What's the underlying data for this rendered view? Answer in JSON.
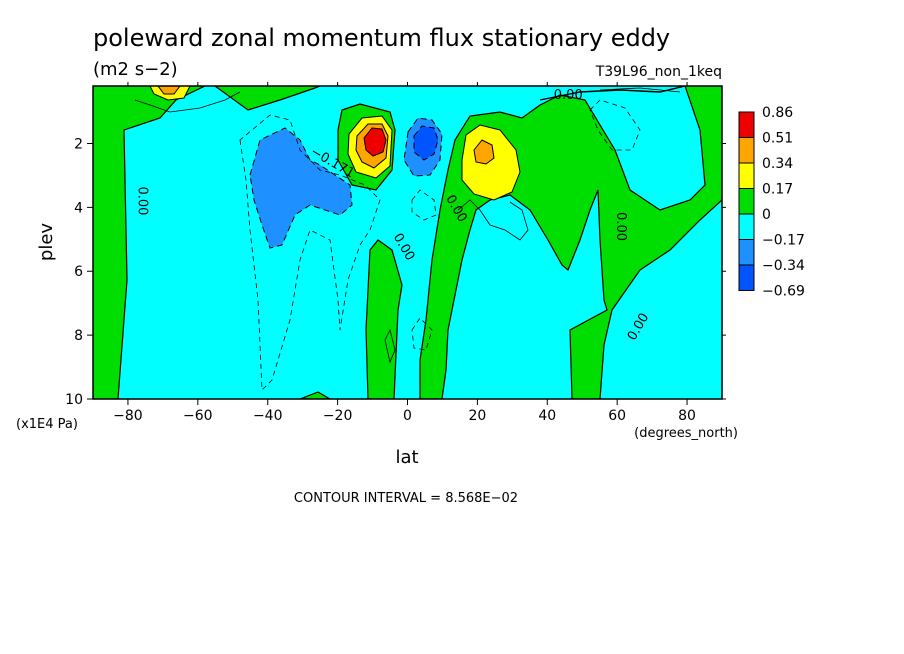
{
  "chart_data": {
    "type": "heatmap",
    "title": "poleward zonal momentum flux stationary eddy",
    "units": "(m2 s−2)",
    "run_label": "T39L96_non_1keq",
    "xlabel": "lat",
    "x_unit_label": "(degrees_north)",
    "ylabel": "plev",
    "y_unit_label": "(x1E4 Pa)",
    "xlim": [
      -90,
      90
    ],
    "ylim": [
      10,
      0.2
    ],
    "x_ticks": [
      -80,
      -60,
      -40,
      -20,
      0,
      20,
      40,
      60,
      80
    ],
    "x_tick_labels": [
      "−80",
      "−60",
      "−40",
      "−20",
      "0",
      "20",
      "40",
      "60",
      "80"
    ],
    "y_ticks": [
      2,
      4,
      6,
      8,
      10
    ],
    "y_tick_labels": [
      "2",
      "4",
      "6",
      "8",
      "10"
    ],
    "contour_note": "CONTOUR INTERVAL = 8.568E−02",
    "colorbar": {
      "labels": [
        "0.86",
        "0.51",
        "0.34",
        "0.17",
        "0",
        "−0.17",
        "−0.34",
        "−0.69"
      ],
      "colors": [
        "#ee0000",
        "#ffa500",
        "#ffff00",
        "#00dd00",
        "#00ffff",
        "#1e90ff",
        "#0055ff"
      ]
    },
    "colors": {
      "positive": "#22cc22",
      "negative": "#00ffff"
    },
    "contour_labels": [
      {
        "text": "0.00",
        "lat": -77,
        "plev": 3.8,
        "angle": 90
      },
      {
        "text": "−0.171",
        "lat": -22,
        "plev": 2.7,
        "angle": 30
      },
      {
        "text": "0.00",
        "lat": -2,
        "plev": 5.3,
        "angle": 60
      },
      {
        "text": "0.00",
        "lat": 13,
        "plev": 4.1,
        "angle": 60
      },
      {
        "text": "0.00",
        "lat": 60,
        "plev": 4.6,
        "angle": 90
      },
      {
        "text": "0.00",
        "lat": 67,
        "plev": 7.8,
        "angle": -60
      },
      {
        "text": "0.00",
        "lat": 46,
        "plev": 0.6,
        "angle": 0
      }
    ],
    "features": [
      {
        "kind": "max",
        "lat": -8,
        "plev": 1.8,
        "value": 0.86
      },
      {
        "kind": "min",
        "lat": 5,
        "plev": 1.8,
        "value": -0.69
      },
      {
        "kind": "max",
        "lat": 21,
        "plev": 2.4,
        "value": 0.51
      },
      {
        "kind": "min",
        "lat": -35,
        "plev": 2.8,
        "value": -0.34
      },
      {
        "kind": "max",
        "lat": -70,
        "plev": 0.3,
        "value": 0.34
      }
    ]
  }
}
